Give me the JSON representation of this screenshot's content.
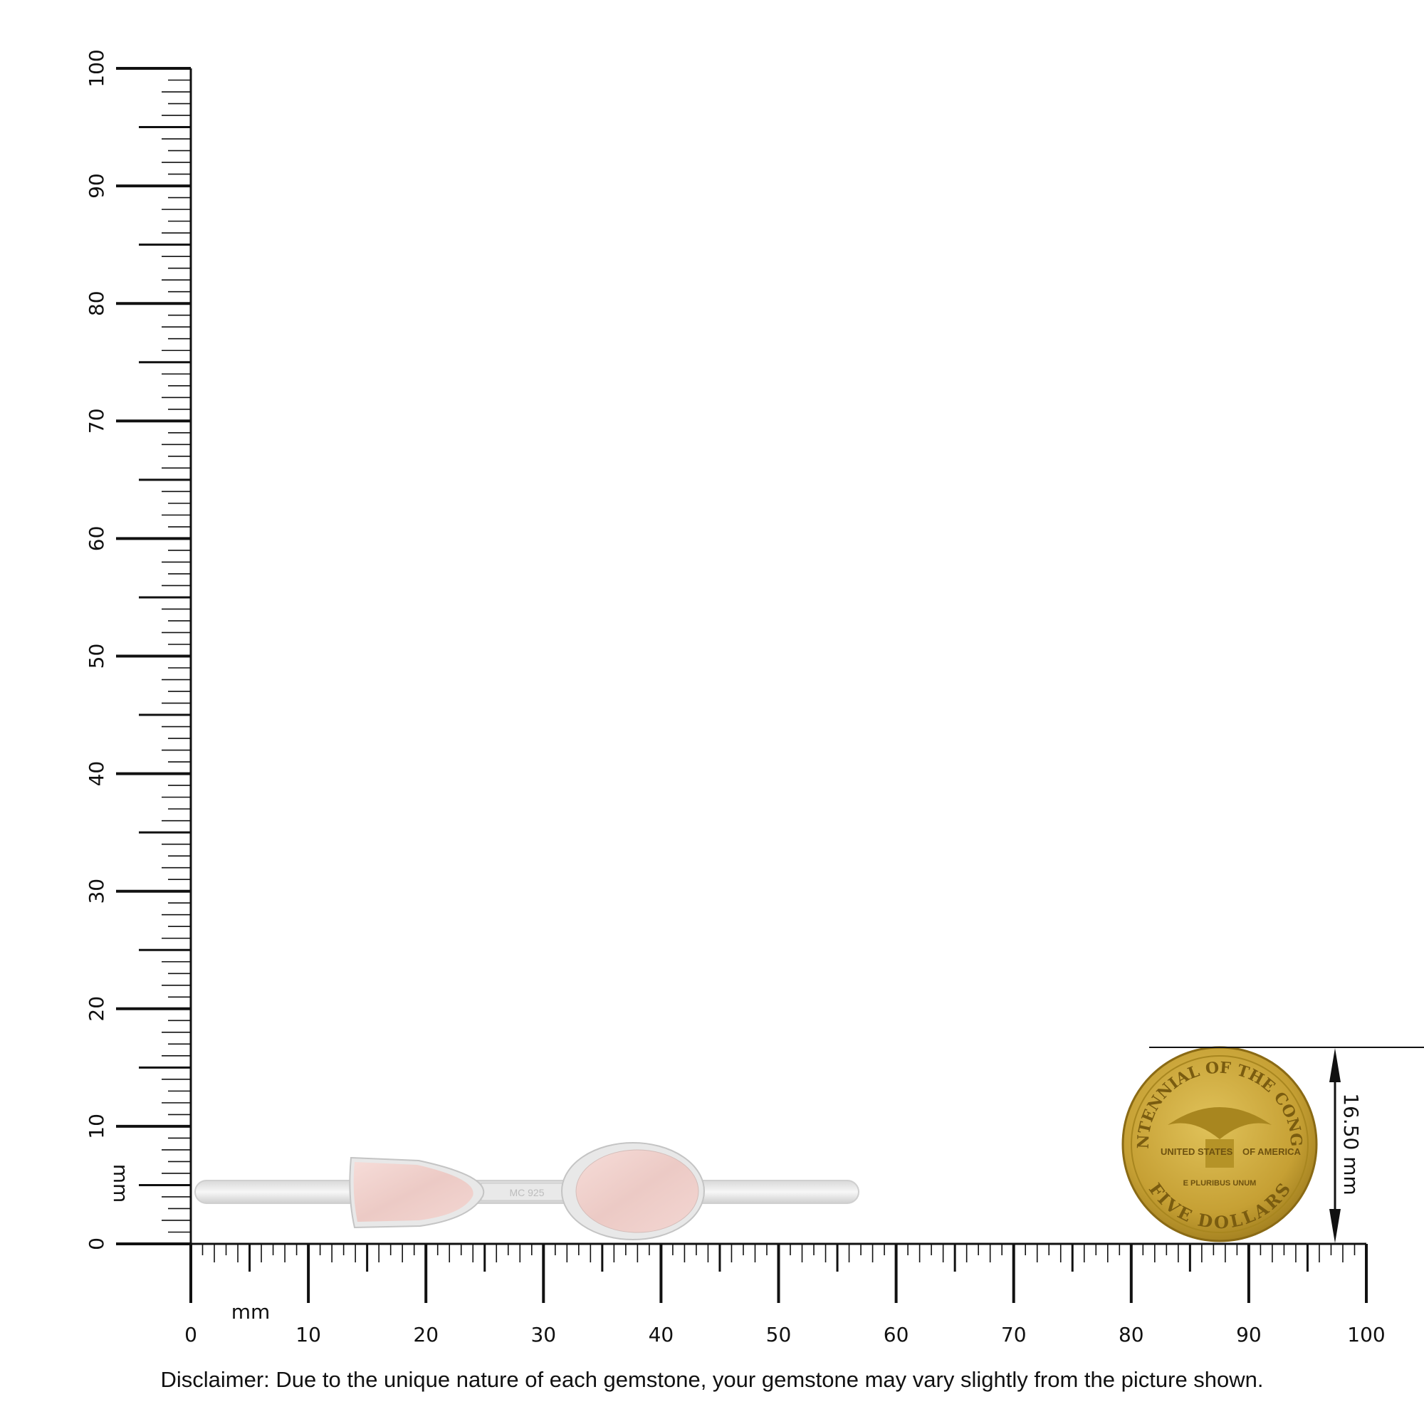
{
  "ruler": {
    "unit": "mm",
    "vertical_labels": [
      "0",
      "10",
      "20",
      "30",
      "40",
      "50",
      "60",
      "70",
      "80",
      "90",
      "100"
    ],
    "horizontal_labels": [
      "0",
      "10",
      "20",
      "30",
      "40",
      "50",
      "60",
      "70",
      "80",
      "90",
      "100"
    ]
  },
  "product": {
    "stone_color": "#f2d4d0",
    "metal_color": "#e4e4e4",
    "stamp": "MC 925"
  },
  "coin": {
    "top_text": "BICENTENNIAL OF THE CONGRESS",
    "left_text": "UNITED STATES",
    "right_text": "OF AMERICA",
    "motto": "E PLURIBUS UNUM",
    "bottom_text": "FIVE DOLLARS",
    "color": "#c9a53a"
  },
  "dimension": {
    "label": "16.50 mm"
  },
  "disclaimer": "Disclaimer: Due to the unique nature of each gemstone, your gemstone may vary slightly from the picture shown."
}
